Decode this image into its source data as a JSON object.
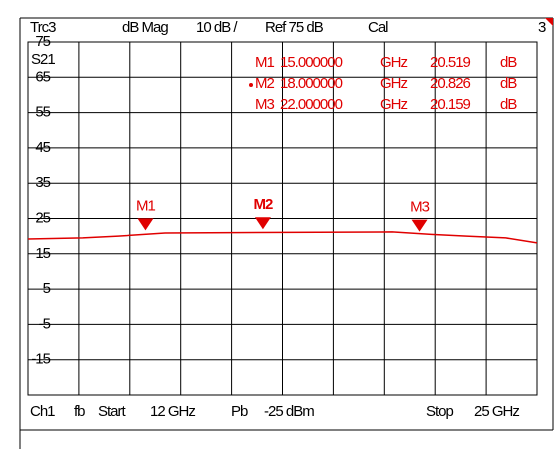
{
  "chart_data": {
    "type": "line",
    "header": {
      "trace": "Trc3",
      "format": "dB Mag",
      "scale": "10 dB /",
      "ref": "Ref 75 dB",
      "cal": "Cal",
      "window": "3"
    },
    "footer": {
      "channel": "Ch1",
      "fb": "fb",
      "start_label": "Start",
      "start": "12 GHz",
      "power_label": "Pb",
      "power": "-25 dBm",
      "stop_label": "Stop",
      "stop": "25 GHz"
    },
    "ylabel": "S21",
    "xlim": [
      12,
      25
    ],
    "ylim": [
      -25,
      75
    ],
    "xticks": [
      12,
      13.3,
      14.6,
      15.9,
      17.2,
      18.5,
      19.8,
      21.1,
      22.4,
      23.7,
      25
    ],
    "yticks": [
      75,
      65,
      55,
      45,
      35,
      25,
      15,
      5,
      -5,
      -15
    ],
    "grid": true,
    "series": [
      {
        "name": "Trc3",
        "color": "#e00000",
        "x": [
          12,
          13.4,
          14.3,
          15.5,
          21.3,
          22.3,
          23.2,
          24.2,
          25
        ],
        "values": [
          19.2,
          19.5,
          20.0,
          20.9,
          21.2,
          20.5,
          20.0,
          19.5,
          18.1
        ]
      }
    ],
    "markers": [
      {
        "name": "M1",
        "x": 15,
        "x_label": "15.000000",
        "x_unit": "GHz",
        "value": 20.519,
        "value_unit": "dB"
      },
      {
        "name": "M2",
        "x": 18,
        "x_label": "18.000000",
        "x_unit": "GHz",
        "value": 20.826,
        "value_unit": "dB"
      },
      {
        "name": "M3",
        "x": 22,
        "x_label": "22.000000",
        "x_unit": "GHz",
        "value": 20.159,
        "value_unit": "dB"
      }
    ],
    "active_marker": 1
  }
}
